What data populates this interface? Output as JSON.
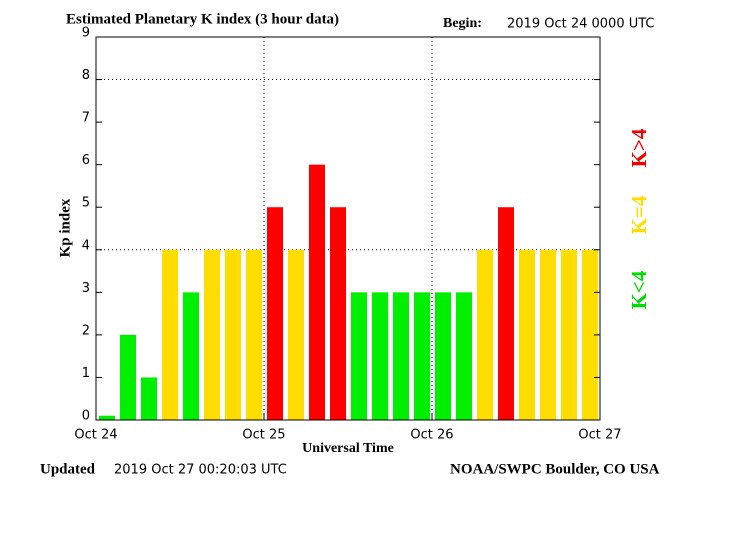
{
  "chart_data": {
    "type": "bar",
    "title": "Estimated Planetary K index (3 hour data)",
    "begin_label": "Begin:",
    "begin": "2019 Oct 24 0000 UTC",
    "y_label": "Kp index",
    "x_label": "Universal Time",
    "updated_label": "Updated",
    "updated": "2019 Oct 27 00:20:03 UTC",
    "credit": "NOAA/SWPC Boulder, CO USA",
    "x_tick_labels": [
      "Oct 24",
      "Oct 25",
      "Oct 26",
      "Oct 27"
    ],
    "values": [
      0.1,
      2,
      1,
      4,
      3,
      4,
      4,
      4,
      5,
      4,
      6,
      5,
      3,
      3,
      3,
      3,
      3,
      3,
      4,
      5,
      4,
      4,
      4,
      4
    ],
    "colors": [
      "#00ee00",
      "#00ee00",
      "#00ee00",
      "#ffdd00",
      "#00ee00",
      "#ffdd00",
      "#ffdd00",
      "#ffdd00",
      "#ff0000",
      "#ffdd00",
      "#ff0000",
      "#ff0000",
      "#00ee00",
      "#00ee00",
      "#00ee00",
      "#00ee00",
      "#00ee00",
      "#00ee00",
      "#ffdd00",
      "#ff0000",
      "#ffdd00",
      "#ffdd00",
      "#ffdd00",
      "#ffdd00"
    ],
    "legend": [
      {
        "name": "K>4",
        "color": "#ee0000"
      },
      {
        "name": "K=4",
        "color": "#ffdd00"
      },
      {
        "name": "K<4",
        "color": "#00dd00"
      }
    ],
    "ylim": [
      0,
      9
    ],
    "yticks": [
      0,
      1,
      2,
      3,
      4,
      5,
      6,
      7,
      8,
      9
    ],
    "ygrid": [
      4,
      8
    ]
  }
}
